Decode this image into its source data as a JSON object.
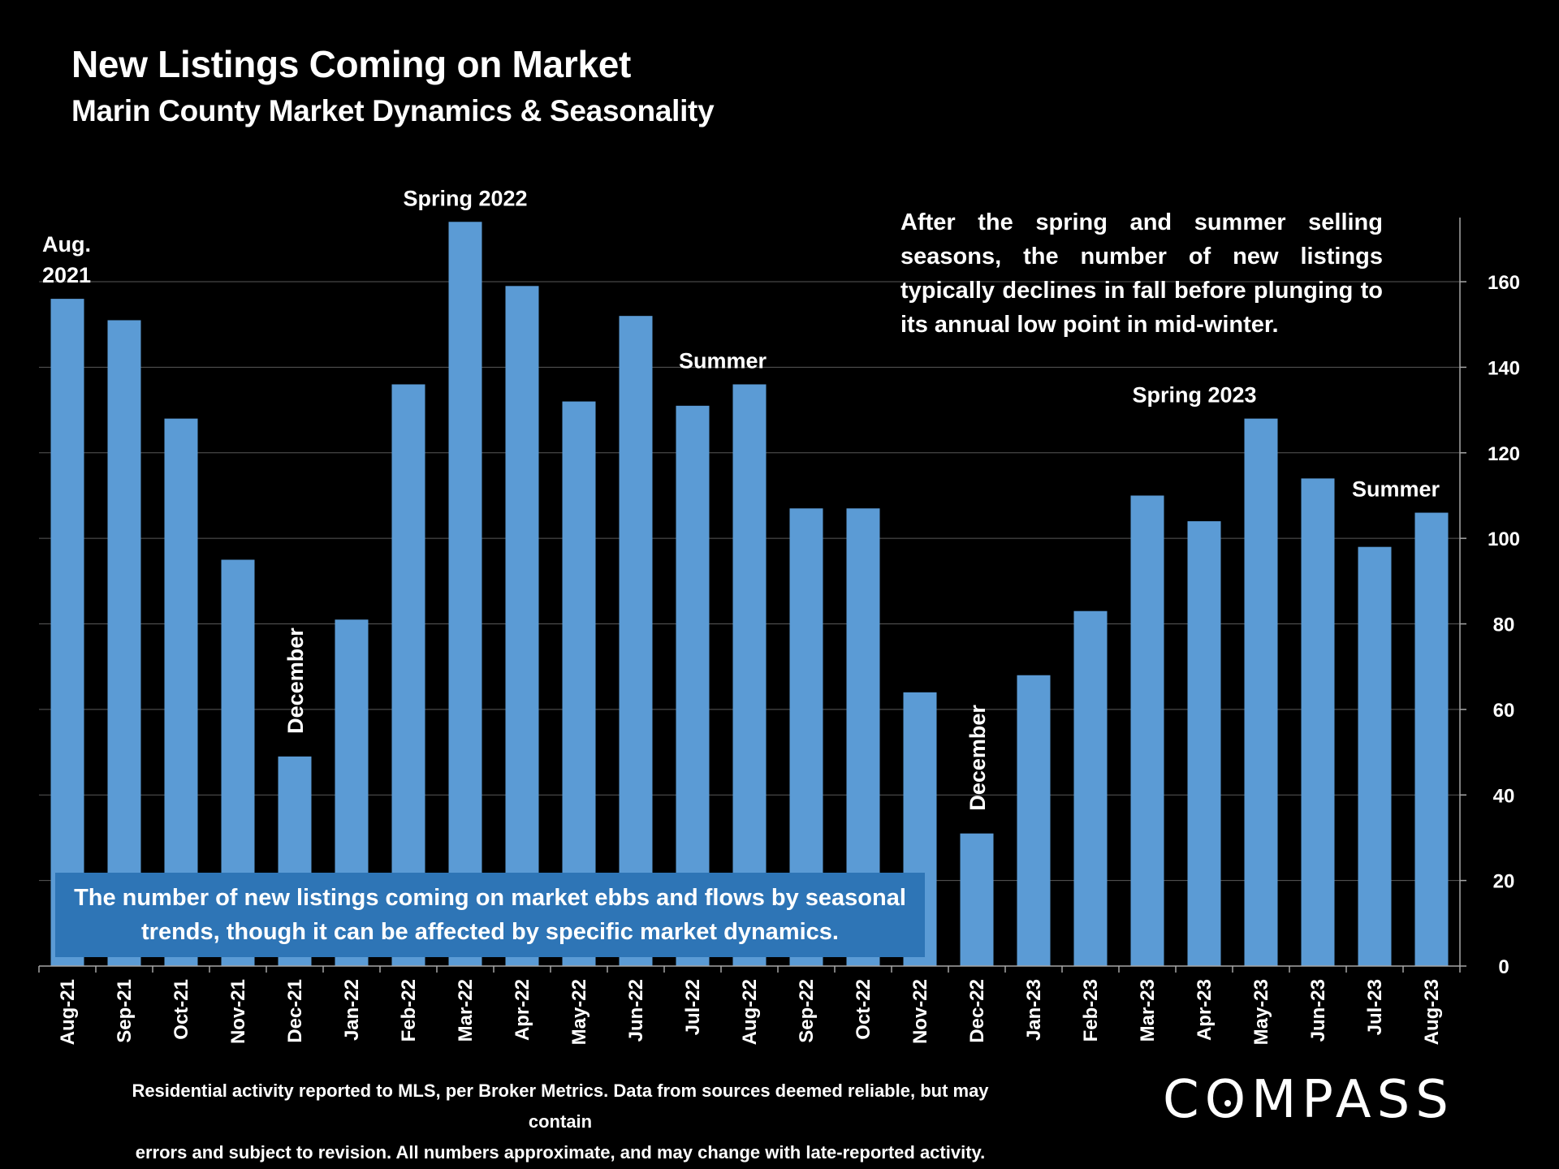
{
  "header": {
    "title": "New Listings Coming on Market",
    "subtitle": "Marin County Market Dynamics & Seasonality"
  },
  "note": "After the spring and summer selling seasons, the number of new listings typically declines in fall before plunging to its annual low point in mid-winter.",
  "callout": "The number of new listings coming on market ebbs and flows by seasonal trends, though it can be affected by specific market dynamics.",
  "footer": {
    "line1": "Residential activity reported to MLS, per Broker Metrics. Data from sources deemed reliable, but may contain",
    "line2": "errors and subject to revision. All numbers approximate, and may change with late-reported activity."
  },
  "logo": {
    "pre": "C",
    "o": "O",
    "post": "MPASS"
  },
  "colors": {
    "bar": "#5b9bd5",
    "callout": "#2e75b6",
    "grid": "#595959",
    "axis": "#a6a6a6"
  },
  "chart_data": {
    "type": "bar",
    "title": "New Listings Coming on Market",
    "xlabel": "",
    "ylabel": "",
    "ylim": [
      0,
      175
    ],
    "yticks": [
      0,
      20,
      40,
      60,
      80,
      100,
      120,
      140,
      160
    ],
    "grid": true,
    "y_axis_side": "right",
    "categories": [
      "Aug-21",
      "Sep-21",
      "Oct-21",
      "Nov-21",
      "Dec-21",
      "Jan-22",
      "Feb-22",
      "Mar-22",
      "Apr-22",
      "May-22",
      "Jun-22",
      "Jul-22",
      "Aug-22",
      "Sep-22",
      "Oct-22",
      "Nov-22",
      "Dec-22",
      "Jan-23",
      "Feb-23",
      "Mar-23",
      "Apr-23",
      "May-23",
      "Jun-23",
      "Jul-23",
      "Aug-23"
    ],
    "values": [
      156,
      151,
      128,
      95,
      49,
      81,
      136,
      174,
      159,
      132,
      152,
      131,
      136,
      107,
      107,
      64,
      31,
      68,
      83,
      110,
      104,
      128,
      114,
      98,
      106
    ],
    "annotations": [
      {
        "lines": [
          "Aug.",
          "2021"
        ],
        "index": 0,
        "value": 156,
        "rotated": false
      },
      {
        "lines": [
          "December"
        ],
        "index": 4,
        "value": 49,
        "rotated": true
      },
      {
        "lines": [
          "Spring 2022"
        ],
        "index": 7,
        "value": 174,
        "rotated": false
      },
      {
        "lines": [
          "Summer"
        ],
        "index": 12,
        "value": 136,
        "rotated": false
      },
      {
        "lines": [
          "December"
        ],
        "index": 16,
        "value": 31,
        "rotated": true
      },
      {
        "lines": [
          "Spring 2023"
        ],
        "index": 21,
        "value": 128,
        "rotated": false
      },
      {
        "lines": [
          "Summer"
        ],
        "index": 24,
        "value": 106,
        "rotated": false
      }
    ]
  }
}
